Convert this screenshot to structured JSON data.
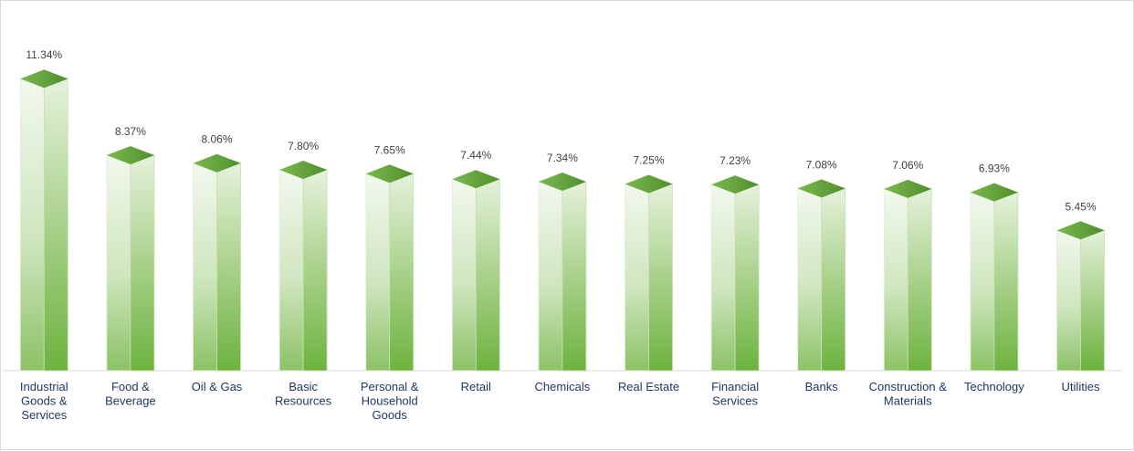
{
  "chart_data": {
    "type": "bar",
    "categories": [
      [
        "Industrial",
        "Goods &",
        "Services"
      ],
      [
        "Food &",
        "Beverage"
      ],
      [
        "Oil & Gas"
      ],
      [
        "Basic",
        "Resources"
      ],
      [
        "Personal &",
        "Household",
        "Goods"
      ],
      [
        "Retail"
      ],
      [
        "Chemicals"
      ],
      [
        "Real Estate"
      ],
      [
        "Financial",
        "Services"
      ],
      [
        "Banks"
      ],
      [
        "Construction &",
        "Materials"
      ],
      [
        "Technology"
      ],
      [
        "Utilities"
      ]
    ],
    "values": [
      11.34,
      8.37,
      8.06,
      7.8,
      7.65,
      7.44,
      7.34,
      7.25,
      7.23,
      7.08,
      7.06,
      6.93,
      5.45
    ],
    "value_labels": [
      "11.34%",
      "8.37%",
      "8.06%",
      "7.80%",
      "7.65%",
      "7.44%",
      "7.34%",
      "7.25%",
      "7.23%",
      "7.08%",
      "7.06%",
      "6.93%",
      "5.45%"
    ],
    "title": "",
    "xlabel": "",
    "ylabel": "",
    "ylim": [
      0,
      12.5
    ],
    "grid": false,
    "legend": "none",
    "colors": {
      "bar_light": "#f2f8ee",
      "bar_mid": "#b7d8a0",
      "bar_dark": "#6db33f",
      "top_face": "#5e9e35",
      "axis": "#d9d9d9"
    }
  }
}
